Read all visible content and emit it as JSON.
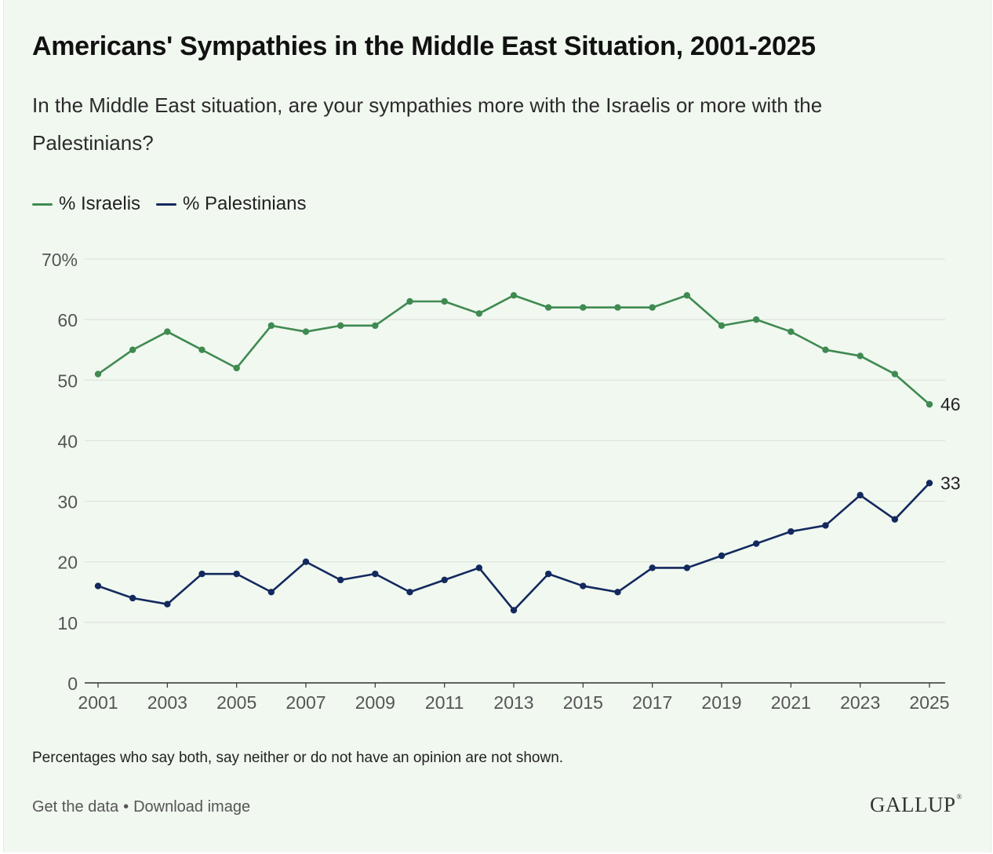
{
  "header": {
    "title": "Americans' Sympathies in the Middle East Situation, 2001-2025",
    "subtitle": "In the Middle East situation, are your sympathies more with the Israelis or more with the Palestinians?"
  },
  "note": "Percentages who say both, say neither or do not have an opinion are not shown.",
  "footer": {
    "get_data": "Get the data",
    "separator": "•",
    "download": "Download image",
    "logo": "GALLUP"
  },
  "chart_data": {
    "type": "line",
    "x": [
      2001,
      2002,
      2003,
      2004,
      2005,
      2006,
      2007,
      2008,
      2009,
      2010,
      2011,
      2012,
      2013,
      2014,
      2015,
      2016,
      2017,
      2018,
      2019,
      2020,
      2021,
      2022,
      2023,
      2024,
      2025
    ],
    "series": [
      {
        "name": "% Israelis",
        "color": "#3f8a51",
        "values": [
          51,
          55,
          58,
          55,
          52,
          59,
          58,
          59,
          59,
          63,
          63,
          61,
          64,
          62,
          62,
          62,
          62,
          64,
          59,
          60,
          58,
          55,
          54,
          51,
          46
        ],
        "end_label": "46"
      },
      {
        "name": "% Palestinians",
        "color": "#13295e",
        "values": [
          16,
          14,
          13,
          18,
          18,
          15,
          20,
          17,
          18,
          15,
          17,
          19,
          12,
          18,
          16,
          15,
          19,
          19,
          21,
          23,
          25,
          26,
          31,
          27,
          33
        ],
        "end_label": "33"
      }
    ],
    "ylim": [
      0,
      70
    ],
    "y_ticks": [
      0,
      10,
      20,
      30,
      40,
      50,
      60,
      70
    ],
    "y_tick_labels": [
      "0",
      "10",
      "20",
      "30",
      "40",
      "50",
      "60",
      "70%"
    ],
    "x_ticks": [
      2001,
      2003,
      2005,
      2007,
      2009,
      2011,
      2013,
      2015,
      2017,
      2019,
      2021,
      2023,
      2025
    ],
    "grid": true,
    "legend_position": "top-left",
    "xlabel": "",
    "ylabel": ""
  }
}
